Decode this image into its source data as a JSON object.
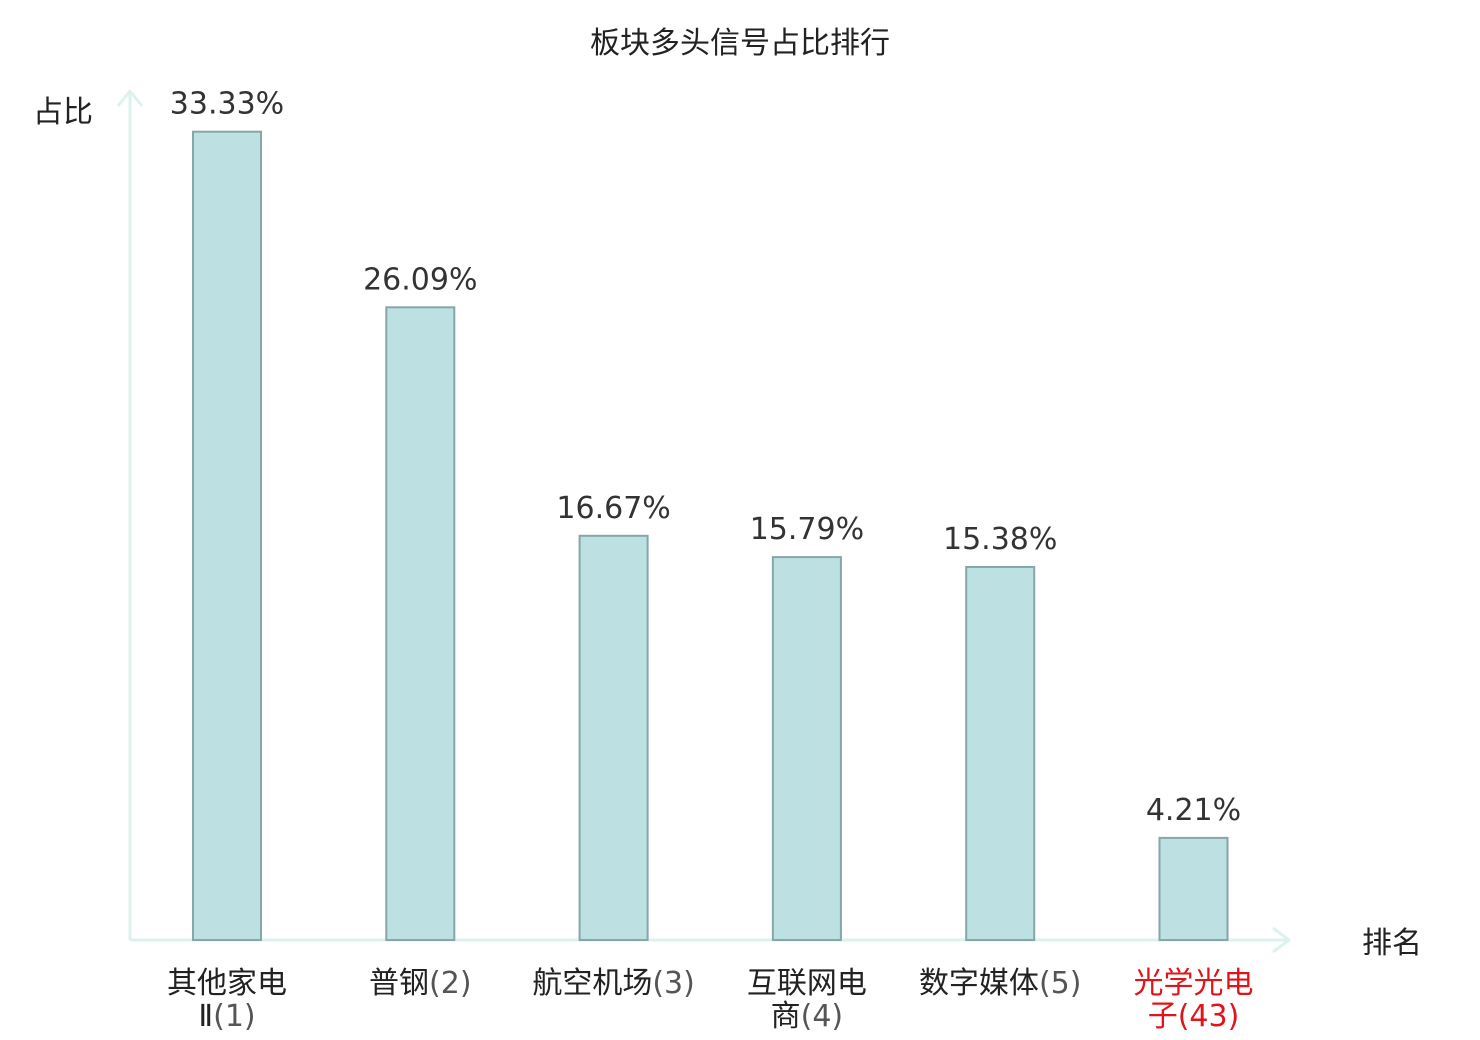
{
  "chart_data": {
    "type": "bar",
    "title": "板块多头信号占比排行",
    "ylabel": "占比",
    "xlabel": "排名",
    "ylim": [
      0,
      35
    ],
    "grid": false,
    "legend": "none",
    "colors": {
      "bar_fill": "#bde0e3",
      "bar_stroke": "#86a6a8",
      "axis": "#ddf2ef",
      "text": "#222222",
      "highlight": "#e0141b"
    },
    "categories": [
      {
        "name": "其他家电\nⅡ",
        "rank": "(1)",
        "highlight": false
      },
      {
        "name": "普钢",
        "rank": "(2)",
        "highlight": false
      },
      {
        "name": "航空机场",
        "rank": "(3)",
        "highlight": false
      },
      {
        "name": "互联网电\n商",
        "rank": "(4)",
        "highlight": false
      },
      {
        "name": "数字媒体",
        "rank": "(5)",
        "highlight": false
      },
      {
        "name": "光学光电\n子",
        "rank": "(43)",
        "highlight": true
      }
    ],
    "values": [
      33.33,
      26.09,
      16.67,
      15.79,
      15.38,
      4.21
    ],
    "value_labels": [
      "33.33%",
      "26.09%",
      "16.67%",
      "15.79%",
      "15.38%",
      "4.21%"
    ]
  }
}
